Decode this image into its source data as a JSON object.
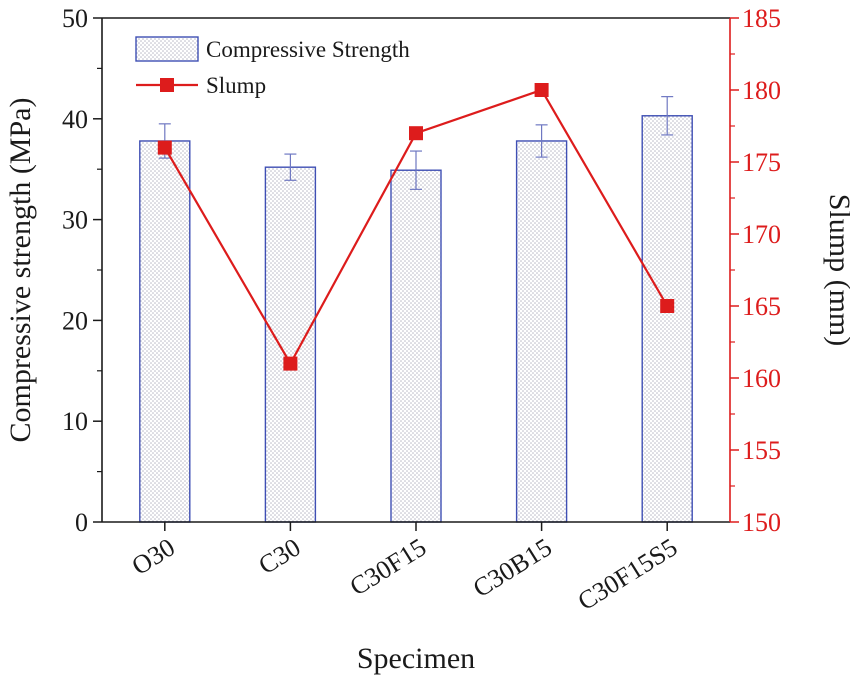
{
  "chart_data": {
    "type": "bar",
    "categories": [
      "O30",
      "C30",
      "C30F15",
      "C30B15",
      "C30F15S5"
    ],
    "series": [
      {
        "name": "Compressive Strength",
        "kind": "bar",
        "axis": "left",
        "values": [
          37.8,
          35.2,
          34.9,
          37.8,
          40.3
        ],
        "errors": [
          1.7,
          1.3,
          1.9,
          1.6,
          1.9
        ]
      },
      {
        "name": "Slump",
        "kind": "line",
        "axis": "right",
        "values": [
          176,
          161,
          177,
          180,
          165
        ]
      }
    ],
    "xlabel": "Specimen",
    "ylabel": "Compressive strength (MPa)",
    "ylabel_right": "Slump (mm)",
    "ylim": [
      0,
      50
    ],
    "ylim_right": [
      150,
      185
    ],
    "yticks": [
      "0",
      "10",
      "20",
      "30",
      "40",
      "50"
    ],
    "yticks_right": [
      "150",
      "155",
      "160",
      "165",
      "170",
      "175",
      "180",
      "185"
    ],
    "legend_position": "top-left",
    "grid": false
  },
  "colors": {
    "bar_edge": "#3f4fb4",
    "bar_hatch": "#b9b9c6",
    "line": "#dd1c1c",
    "axis": "#1a1a1a",
    "right_axis": "#dd1c1c",
    "error": "#6f78c2"
  }
}
